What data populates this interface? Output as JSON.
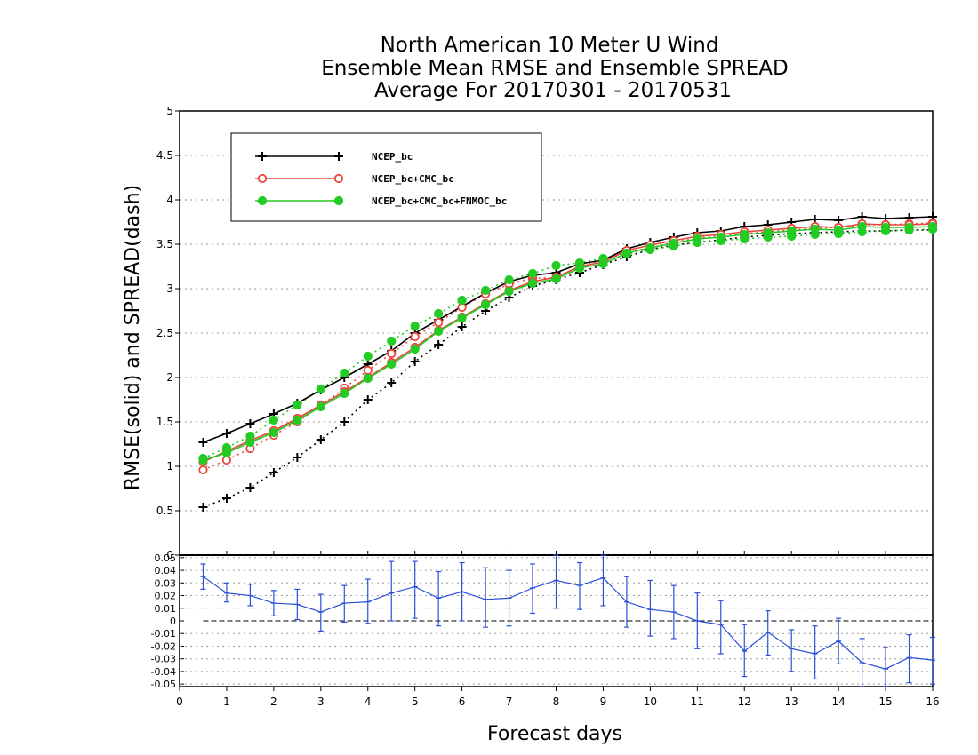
{
  "chart_data": [
    {
      "type": "line",
      "title": [
        "North American 10 Meter U Wind",
        "Ensemble Mean RMSE and Ensemble SPREAD",
        "Average For 20170301 - 20170531"
      ],
      "ylabel": "RMSE(solid) and SPREAD(dash)",
      "xlabel": "Forecast days",
      "xlim": [
        0,
        16
      ],
      "ylim": [
        0,
        5
      ],
      "x_ticks": [
        0,
        1,
        2,
        3,
        4,
        5,
        6,
        7,
        8,
        9,
        10,
        11,
        12,
        13,
        14,
        15,
        16
      ],
      "y_ticks": [
        "0",
        "0.5",
        "1",
        "1.5",
        "2",
        "2.5",
        "3",
        "3.5",
        "4",
        "4.5",
        "5"
      ],
      "grid": true,
      "legend_position": "top-left",
      "x": [
        0.5,
        1,
        1.5,
        2,
        2.5,
        3,
        3.5,
        4,
        4.5,
        5,
        5.5,
        6,
        6.5,
        7,
        7.5,
        8,
        8.5,
        9,
        9.5,
        10,
        10.5,
        11,
        11.5,
        12,
        12.5,
        13,
        13.5,
        14,
        14.5,
        15,
        15.5,
        16
      ],
      "series": [
        {
          "name": "NCEP_bc",
          "color": "#000000",
          "marker": "plus",
          "rmse": [
            1.27,
            1.37,
            1.48,
            1.59,
            1.71,
            1.86,
            2.0,
            2.15,
            2.3,
            2.5,
            2.65,
            2.8,
            2.95,
            3.08,
            3.15,
            3.18,
            3.28,
            3.32,
            3.45,
            3.52,
            3.58,
            3.63,
            3.65,
            3.7,
            3.72,
            3.75,
            3.78,
            3.77,
            3.81,
            3.79,
            3.8,
            3.81
          ],
          "spread": [
            0.54,
            0.64,
            0.76,
            0.93,
            1.1,
            1.3,
            1.5,
            1.75,
            1.94,
            2.18,
            2.37,
            2.57,
            2.75,
            2.9,
            3.03,
            3.1,
            3.18,
            3.27,
            3.36,
            3.44,
            3.49,
            3.52,
            3.55,
            3.58,
            3.6,
            3.62,
            3.63,
            3.64,
            3.65,
            3.65,
            3.66,
            3.66
          ]
        },
        {
          "name": "NCEP_bc+CMC_bc",
          "color": "#e8463c",
          "marker": "open-circle",
          "rmse": [
            1.05,
            1.17,
            1.29,
            1.4,
            1.54,
            1.69,
            1.84,
            2.0,
            2.17,
            2.34,
            2.53,
            2.68,
            2.83,
            2.98,
            3.08,
            3.13,
            3.25,
            3.3,
            3.43,
            3.49,
            3.54,
            3.59,
            3.61,
            3.64,
            3.66,
            3.68,
            3.7,
            3.69,
            3.73,
            3.72,
            3.72,
            3.73
          ],
          "spread": [
            0.96,
            1.07,
            1.2,
            1.35,
            1.5,
            1.68,
            1.88,
            2.08,
            2.27,
            2.46,
            2.62,
            2.79,
            2.94,
            3.05,
            3.12,
            3.12,
            3.25,
            3.33,
            3.41,
            3.46,
            3.52,
            3.57,
            3.6,
            3.62,
            3.64,
            3.66,
            3.68,
            3.69,
            3.72,
            3.72,
            3.73,
            3.74
          ]
        },
        {
          "name": "NCEP_bc+CMC_bc+FNMOC_bc",
          "color": "#22cc22",
          "marker": "filled-circle",
          "rmse": [
            1.07,
            1.15,
            1.27,
            1.38,
            1.52,
            1.67,
            1.82,
            1.99,
            2.15,
            2.32,
            2.52,
            2.67,
            2.82,
            2.97,
            3.06,
            3.11,
            3.23,
            3.28,
            3.4,
            3.46,
            3.51,
            3.56,
            3.58,
            3.61,
            3.63,
            3.65,
            3.67,
            3.66,
            3.7,
            3.69,
            3.69,
            3.7
          ],
          "spread": [
            1.09,
            1.21,
            1.34,
            1.52,
            1.69,
            1.87,
            2.05,
            2.24,
            2.41,
            2.58,
            2.72,
            2.87,
            2.98,
            3.1,
            3.17,
            3.26,
            3.29,
            3.34,
            3.39,
            3.44,
            3.48,
            3.52,
            3.54,
            3.56,
            3.58,
            3.59,
            3.61,
            3.62,
            3.64,
            3.65,
            3.66,
            3.67
          ]
        }
      ]
    },
    {
      "type": "line",
      "title": "",
      "xlim": [
        0,
        16
      ],
      "ylim": [
        -0.052,
        0.052
      ],
      "y_ticks": [
        "0.05",
        "0.04",
        "0.03",
        "0.02",
        "0.01",
        "0",
        "-0.01",
        "-0.02",
        "-0.03",
        "-0.04",
        "-0.05"
      ],
      "x": [
        0.5,
        1,
        1.5,
        2,
        2.5,
        3,
        3.5,
        4,
        4.5,
        5,
        5.5,
        6,
        6.5,
        7,
        7.5,
        8,
        8.5,
        9,
        9.5,
        10,
        10.5,
        11,
        11.5,
        12,
        12.5,
        13,
        13.5,
        14,
        14.5,
        15,
        15.5,
        16
      ],
      "series": [
        {
          "name": "",
          "color": "#2b4fd8",
          "values": [
            0.035,
            0.022,
            0.02,
            0.014,
            0.013,
            0.007,
            0.014,
            0.015,
            0.022,
            0.027,
            0.018,
            0.023,
            0.017,
            0.018,
            0.026,
            0.032,
            0.028,
            0.034,
            0.015,
            0.009,
            0.007,
            0.0,
            -0.003,
            -0.024,
            -0.009,
            -0.022,
            -0.026,
            -0.016,
            -0.033,
            -0.038,
            -0.029,
            -0.031
          ],
          "err_low": [
            0.025,
            0.015,
            0.012,
            0.004,
            0.001,
            -0.008,
            -0.001,
            -0.002,
            0.0,
            0.002,
            -0.004,
            0.0,
            -0.005,
            -0.004,
            0.006,
            0.01,
            0.009,
            0.012,
            -0.005,
            -0.012,
            -0.014,
            -0.022,
            -0.026,
            -0.044,
            -0.027,
            -0.04,
            -0.046,
            -0.034,
            -0.052,
            -0.055,
            -0.049,
            -0.05
          ],
          "err_high": [
            0.045,
            0.03,
            0.029,
            0.024,
            0.025,
            0.021,
            0.028,
            0.033,
            0.047,
            0.047,
            0.039,
            0.046,
            0.042,
            0.04,
            0.045,
            0.053,
            0.046,
            0.053,
            0.035,
            0.032,
            0.028,
            0.022,
            0.016,
            -0.003,
            0.008,
            -0.007,
            -0.004,
            0.002,
            -0.014,
            -0.021,
            -0.011,
            -0.013
          ]
        }
      ]
    }
  ]
}
